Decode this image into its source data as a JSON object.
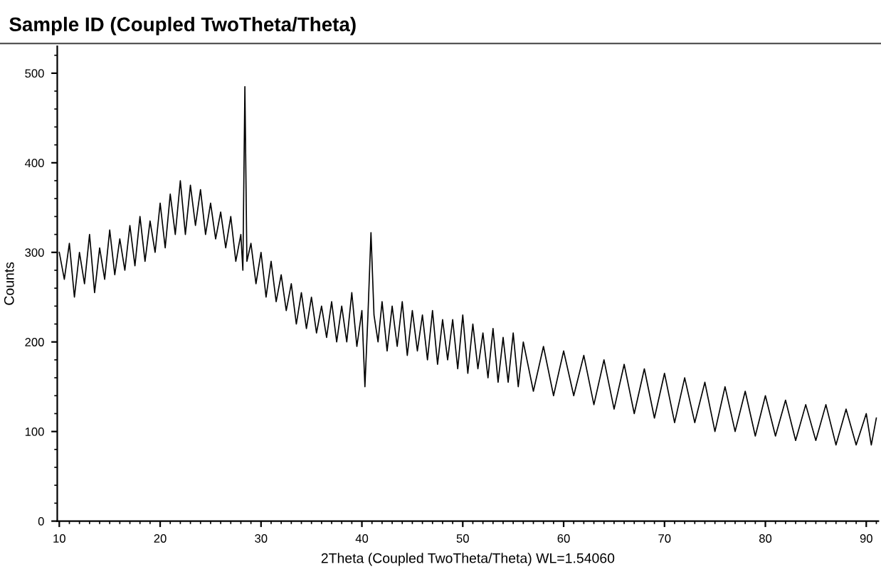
{
  "chart_data": {
    "type": "line",
    "title": "Sample ID (Coupled TwoTheta/Theta)",
    "xlabel": "2Theta (Coupled TwoTheta/Theta) WL=1.54060",
    "ylabel": "Counts",
    "xlim": [
      9.8,
      91.2
    ],
    "ylim": [
      0,
      530
    ],
    "xticks": [
      10,
      20,
      30,
      40,
      50,
      60,
      70,
      80,
      90
    ],
    "yticks": [
      0,
      100,
      200,
      300,
      400,
      500
    ],
    "grid": false,
    "legend": false,
    "series": [
      {
        "color": "#000000",
        "x": [
          10,
          10.5,
          11,
          11.5,
          12,
          12.5,
          13,
          13.5,
          14,
          14.5,
          15,
          15.5,
          16,
          16.5,
          17,
          17.5,
          18,
          18.5,
          19,
          19.5,
          20,
          20.5,
          21,
          21.5,
          22,
          22.5,
          23,
          23.5,
          24,
          24.5,
          25,
          25.5,
          26,
          26.5,
          27,
          27.5,
          28,
          28.2,
          28.4,
          28.6,
          29,
          29.5,
          30,
          30.5,
          31,
          31.5,
          32,
          32.5,
          33,
          33.5,
          34,
          34.5,
          35,
          35.5,
          36,
          36.5,
          37,
          37.5,
          38,
          38.5,
          39,
          39.5,
          40,
          40.3,
          40.6,
          40.9,
          41.2,
          41.6,
          42,
          42.5,
          43,
          43.5,
          44,
          44.5,
          45,
          45.5,
          46,
          46.5,
          47,
          47.5,
          48,
          48.5,
          49,
          49.5,
          50,
          50.5,
          51,
          51.5,
          52,
          52.5,
          53,
          53.5,
          54,
          54.5,
          55,
          55.5,
          56,
          57,
          58,
          59,
          60,
          61,
          62,
          63,
          64,
          65,
          66,
          67,
          68,
          69,
          70,
          71,
          72,
          73,
          74,
          75,
          76,
          77,
          78,
          79,
          80,
          81,
          82,
          83,
          84,
          85,
          86,
          87,
          88,
          89,
          90,
          90.5,
          91
        ],
        "values": [
          300,
          270,
          310,
          250,
          300,
          265,
          320,
          255,
          305,
          270,
          325,
          275,
          315,
          280,
          330,
          285,
          340,
          290,
          335,
          300,
          355,
          305,
          365,
          320,
          380,
          320,
          375,
          330,
          370,
          320,
          355,
          315,
          345,
          305,
          340,
          290,
          320,
          280,
          485,
          290,
          310,
          265,
          300,
          250,
          290,
          245,
          275,
          235,
          265,
          220,
          255,
          215,
          250,
          210,
          240,
          205,
          245,
          200,
          240,
          200,
          255,
          195,
          235,
          150,
          230,
          322,
          230,
          200,
          245,
          190,
          240,
          195,
          245,
          185,
          235,
          190,
          230,
          180,
          235,
          175,
          225,
          180,
          225,
          170,
          230,
          165,
          220,
          170,
          210,
          160,
          215,
          155,
          205,
          155,
          210,
          150,
          200,
          145,
          195,
          140,
          190,
          140,
          185,
          130,
          180,
          125,
          175,
          120,
          170,
          115,
          165,
          110,
          160,
          110,
          155,
          100,
          150,
          100,
          145,
          95,
          140,
          95,
          135,
          90,
          130,
          90,
          130,
          85,
          125,
          85,
          120,
          85,
          115
        ]
      }
    ]
  }
}
